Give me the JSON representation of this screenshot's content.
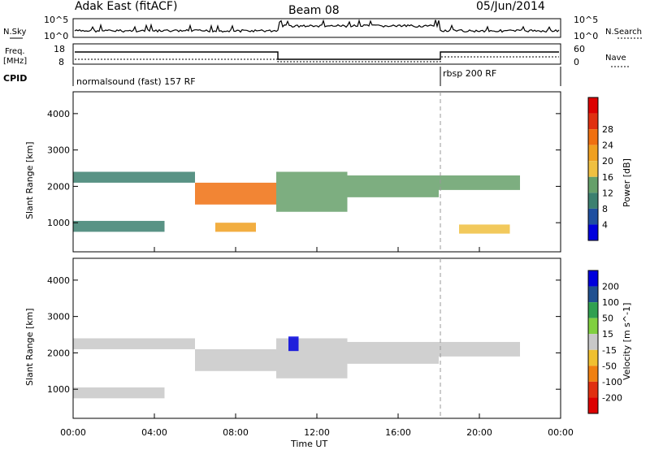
{
  "header": {
    "station": "Adak East (fitACF)",
    "beam": "Beam 08",
    "date": "05/Jun/2014"
  },
  "left_labels": {
    "nsky": "N.Sky",
    "nsky_hi": "10^5",
    "nsky_lo": "10^0",
    "freq": "Freq.",
    "freq_unit": "[MHz]",
    "freq_hi": "18",
    "freq_lo": "8",
    "cpid": "CPID"
  },
  "right_labels": {
    "nsearch": "N.Search",
    "nsearch_hi": "10^5",
    "nsearch_lo": "10^0",
    "nave": "Nave",
    "nave_hi": "60",
    "nave_lo": "0"
  },
  "cpid_labels": [
    "normalsound (fast) 157 RF",
    "rbsp 200 RF"
  ],
  "colors": {
    "power_scale": [
      "#0000dd",
      "#1f4fa0",
      "#3c8070",
      "#66a06a",
      "#f0c040",
      "#f0a020",
      "#f07010",
      "#e03010",
      "#dd0000"
    ],
    "velocity_scale": [
      "#0000dd",
      "#205090",
      "#30a050",
      "#80d040",
      "#c8c8c8",
      "#f0c030",
      "#f08010",
      "#e03010",
      "#dd0000"
    ]
  },
  "chart_data": [
    {
      "type": "heatmap",
      "title": "Power",
      "ylabel": "Slant Range [km]",
      "y_ticks": [
        "1000",
        "2000",
        "3000",
        "4000"
      ],
      "ylim": [
        200,
        4600
      ],
      "colorbar_label": "Power [dB]",
      "colorbar_ticks": [
        "4",
        "8",
        "12",
        "16",
        "20",
        "24",
        "28"
      ],
      "colorbar_range": [
        0,
        32
      ],
      "bands": [
        {
          "t": [
            0.0,
            6.0
          ],
          "range": [
            2100,
            2400
          ],
          "value": 10
        },
        {
          "t": [
            6.0,
            10.0
          ],
          "range": [
            1500,
            2100
          ],
          "value": 22
        },
        {
          "t": [
            10.0,
            13.5
          ],
          "range": [
            1300,
            2400
          ],
          "value": 12
        },
        {
          "t": [
            13.5,
            18.0
          ],
          "range": [
            1700,
            2300
          ],
          "value": 14
        },
        {
          "t": [
            18.0,
            22.0
          ],
          "range": [
            1900,
            2300
          ],
          "value": 14
        },
        {
          "t": [
            0.0,
            4.5
          ],
          "range": [
            750,
            1050
          ],
          "value": 8
        },
        {
          "t": [
            7.0,
            9.0
          ],
          "range": [
            750,
            1000
          ],
          "value": 18
        },
        {
          "t": [
            19.0,
            21.5
          ],
          "range": [
            700,
            950
          ],
          "value": 16
        }
      ]
    },
    {
      "type": "heatmap",
      "title": "Velocity",
      "ylabel": "Slant Range [km]",
      "y_ticks": [
        "1000",
        "2000",
        "3000",
        "4000"
      ],
      "ylim": [
        200,
        4600
      ],
      "xlabel": "Time UT",
      "x_ticks": [
        "00:00",
        "04:00",
        "08:00",
        "12:00",
        "16:00",
        "20:00",
        "00:00"
      ],
      "colorbar_label": "Velocity [m s^-1]",
      "colorbar_ticks": [
        "200",
        "100",
        "50",
        "15",
        "-15",
        "-50",
        "-100",
        "-200"
      ],
      "colorbar_range": [
        -250,
        250
      ],
      "bands": [
        {
          "t": [
            0.0,
            6.0
          ],
          "range": [
            2100,
            2400
          ],
          "value": 0
        },
        {
          "t": [
            6.0,
            10.0
          ],
          "range": [
            1500,
            2100
          ],
          "value": 0
        },
        {
          "t": [
            10.0,
            13.5
          ],
          "range": [
            1300,
            2400
          ],
          "value": -20
        },
        {
          "t": [
            13.5,
            18.0
          ],
          "range": [
            1700,
            2300
          ],
          "value": 0
        },
        {
          "t": [
            18.0,
            22.0
          ],
          "range": [
            1900,
            2300
          ],
          "value": 0
        },
        {
          "t": [
            0.0,
            4.5
          ],
          "range": [
            750,
            1050
          ],
          "value": 0
        },
        {
          "t": [
            10.6,
            11.1
          ],
          "range": [
            2050,
            2450
          ],
          "value": 220
        }
      ]
    }
  ]
}
